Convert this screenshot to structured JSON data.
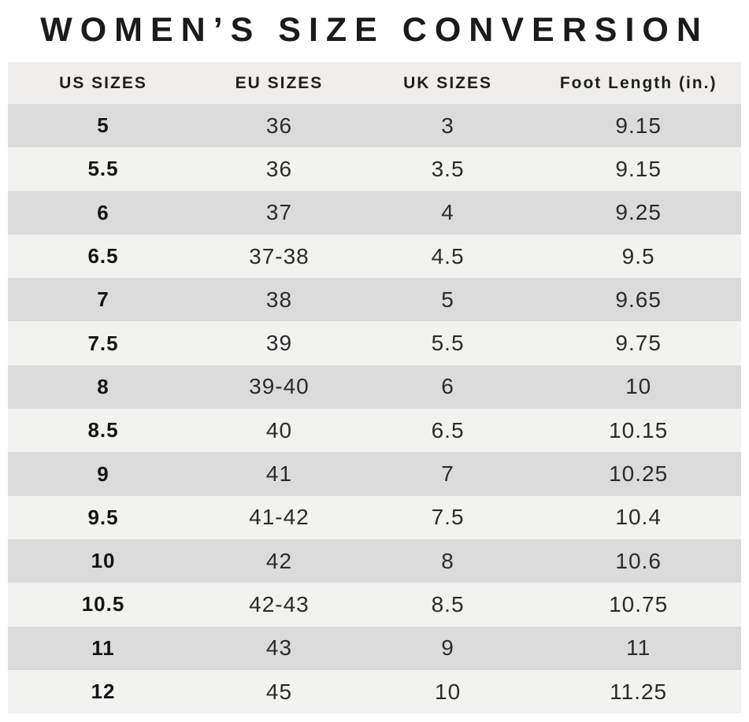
{
  "colors": {
    "page_bg": "#ffffff",
    "header_bg": "#efeeed",
    "row_dark": "#dbdbdb",
    "row_light": "#f2f2f1",
    "title_text": "#1b1b1b",
    "cell_text": "#2b2b2b"
  },
  "chart_data": {
    "type": "table",
    "title": "WOMEN’S SIZE CONVERSION",
    "columns": [
      "US SIZES",
      "EU SIZES",
      "UK SIZES",
      "Foot Length (in.)"
    ],
    "rows": [
      [
        "5",
        "36",
        "3",
        "9.15"
      ],
      [
        "5.5",
        "36",
        "3.5",
        "9.15"
      ],
      [
        "6",
        "37",
        "4",
        "9.25"
      ],
      [
        "6.5",
        "37-38",
        "4.5",
        "9.5"
      ],
      [
        "7",
        "38",
        "5",
        "9.65"
      ],
      [
        "7.5",
        "39",
        "5.5",
        "9.75"
      ],
      [
        "8",
        "39-40",
        "6",
        "10"
      ],
      [
        "8.5",
        "40",
        "6.5",
        "10.15"
      ],
      [
        "9",
        "41",
        "7",
        "10.25"
      ],
      [
        "9.5",
        "41-42",
        "7.5",
        "10.4"
      ],
      [
        "10",
        "42",
        "8",
        "10.6"
      ],
      [
        "10.5",
        "42-43",
        "8.5",
        "10.75"
      ],
      [
        "11",
        "43",
        "9",
        "11"
      ],
      [
        "12",
        "45",
        "10",
        "11.25"
      ]
    ],
    "layout": {
      "striping": "first data row dark, alternating",
      "grid": false,
      "alignment": "center"
    }
  }
}
